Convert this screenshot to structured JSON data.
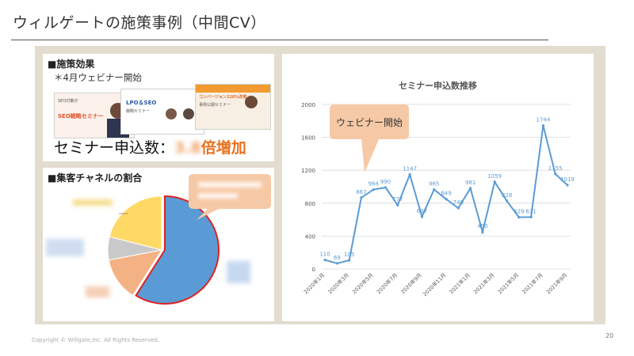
{
  "slide": {
    "title": "ウィルゲートの施策事例（中間CV）",
    "footer": "Copyright © Willgate,Inc. All Rights Reserved.",
    "page_number": "20"
  },
  "effect": {
    "heading": "■施策効果",
    "note": "＊4月ウェビナー開始",
    "result_prefix": "セミナー申込数：",
    "result_suffix": "倍増加",
    "thumbnails": [
      {
        "line1": "SEO対策が",
        "line2": "SEO戦略セミナー"
      },
      {
        "line1": "LPO＆SEO",
        "line2": "戦略セミナー"
      },
      {
        "line1": "コンバージョン120%改善",
        "line2": "事例公開セミナー"
      }
    ]
  },
  "channel": {
    "heading": "■集客チャネルの割合"
  },
  "chart_data": {
    "type": "line",
    "title": "セミナー申込数推移",
    "x": [
      "2020年1月",
      "2020年2月",
      "2020年3月",
      "2020年4月",
      "2020年5月",
      "2020年6月",
      "2020年7月",
      "2020年8月",
      "2020年9月",
      "2020年10月",
      "2020年11月",
      "2020年12月",
      "2021年1月",
      "2021年2月",
      "2021年3月",
      "2021年4月",
      "2021年5月",
      "2021年6月",
      "2021年7月",
      "2021年8月",
      "2021年9月"
    ],
    "x_tick_labels": [
      "2020年1月",
      "2020年3月",
      "2020年5月",
      "2020年7月",
      "2020年9月",
      "2020年11月",
      "2021年1月",
      "2021年3月",
      "2021年5月",
      "2021年7月",
      "2021年9月"
    ],
    "series": [
      {
        "values": [
          110,
          69,
          105,
          867,
          964,
          990,
          777,
          1147,
          637,
          965,
          849,
          740,
          981,
          450,
          1059,
          828,
          629,
          631,
          1744,
          1155,
          1019
        ]
      }
    ],
    "ylim": [
      0,
      2000
    ],
    "yticks": [
      0,
      400,
      800,
      1200,
      1600,
      2000
    ],
    "grid": true,
    "line_color": "#5b9bd5",
    "callout": "ウェビナー開始"
  },
  "pie_data": {
    "type": "pie",
    "slices": [
      {
        "value": 59,
        "color": "#5b9bd5"
      },
      {
        "value": 13,
        "color": "#f4b183"
      },
      {
        "value": 7,
        "color": "#c9c9c9"
      },
      {
        "value": 21,
        "color": "#ffd966"
      }
    ],
    "highlight_color": "#e02020"
  }
}
